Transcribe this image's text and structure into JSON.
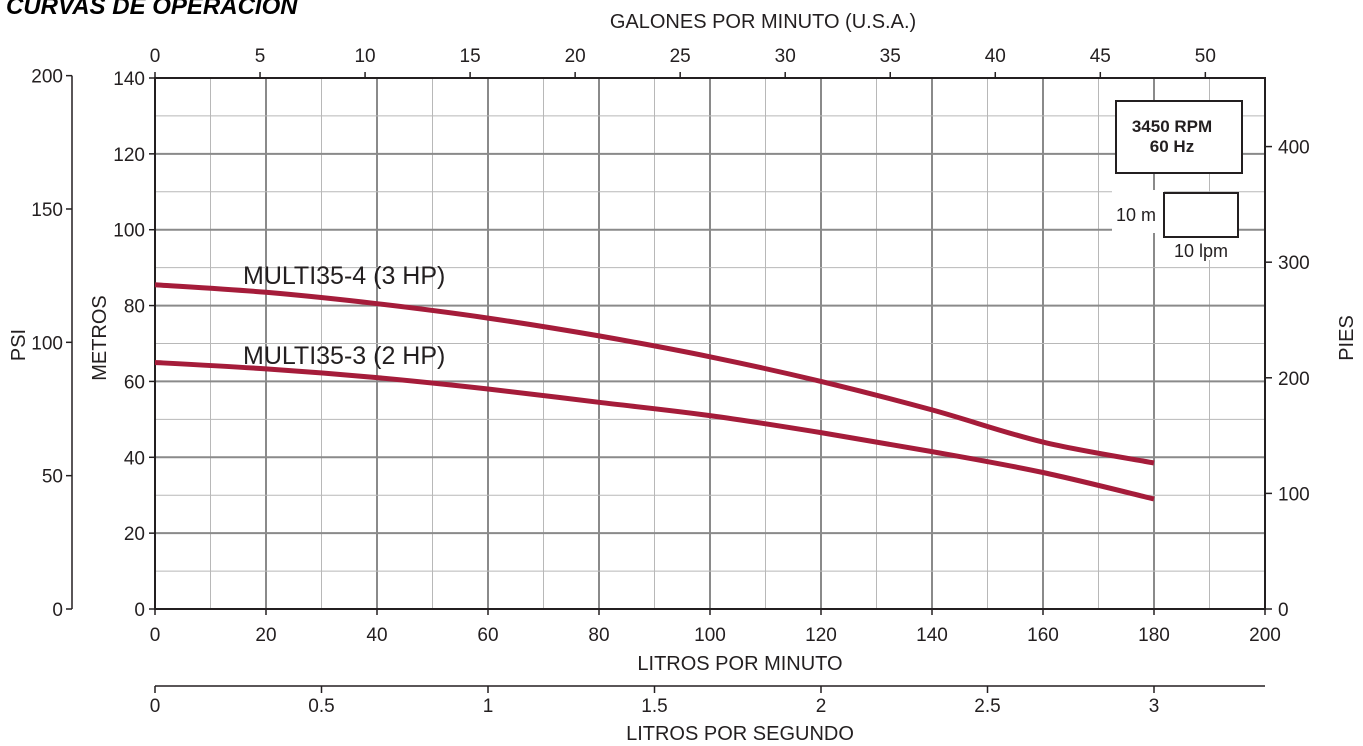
{
  "page_title": "CURVAS DE OPERACIÓN",
  "chart_data": {
    "type": "line",
    "title": "CURVAS DE OPERACIÓN",
    "xlabel": "LITROS POR MINUTO",
    "ylabel": "METROS",
    "xlim": [
      0,
      200
    ],
    "ylim": [
      0,
      140
    ],
    "grid": true,
    "x_ticks": [
      "0",
      "20",
      "40",
      "60",
      "80",
      "100",
      "120",
      "140",
      "160",
      "180",
      "200"
    ],
    "y_ticks": [
      "0",
      "20",
      "40",
      "60",
      "80",
      "100",
      "120",
      "140"
    ],
    "secondary_axes": {
      "top": {
        "label": "GALONES POR MINUTO (U.S.A.)",
        "ticks": [
          "0",
          "5",
          "10",
          "15",
          "20",
          "25",
          "30",
          "35",
          "40",
          "45",
          "50"
        ],
        "per_unit_lpm": 3.785
      },
      "bottom2": {
        "label": "LITROS POR SEGUNDO",
        "ticks": [
          "0",
          "0.5",
          "1",
          "1.5",
          "2",
          "2.5",
          "3"
        ],
        "per_unit_lpm": 60
      },
      "left2": {
        "label": "PSI",
        "ticks": [
          "0",
          "50",
          "100",
          "150",
          "200"
        ],
        "per_unit_m": 0.7031
      },
      "right": {
        "label": "PIES",
        "ticks": [
          "0",
          "100",
          "200",
          "300",
          "400"
        ],
        "per_unit_m": 0.3048
      }
    },
    "legend_box": {
      "rpm": "3450 RPM",
      "hz": "60 Hz"
    },
    "scale_box": {
      "vertical": "10 m",
      "horizontal": "10 lpm"
    },
    "series": [
      {
        "name": "MULTI35-4 (3 HP)",
        "color": "#a51c3a",
        "x": [
          0,
          20,
          40,
          60,
          80,
          100,
          120,
          140,
          160,
          180
        ],
        "y": [
          85.5,
          83.5,
          80.5,
          76.7,
          72,
          66.5,
          60,
          52.5,
          44,
          38.5
        ]
      },
      {
        "name": "MULTI35-3 (2 HP)",
        "color": "#a51c3a",
        "x": [
          0,
          20,
          40,
          60,
          80,
          100,
          120,
          140,
          160,
          180
        ],
        "y": [
          65,
          63.3,
          61,
          58,
          54.5,
          51,
          46.5,
          41.5,
          36,
          29
        ]
      }
    ]
  }
}
